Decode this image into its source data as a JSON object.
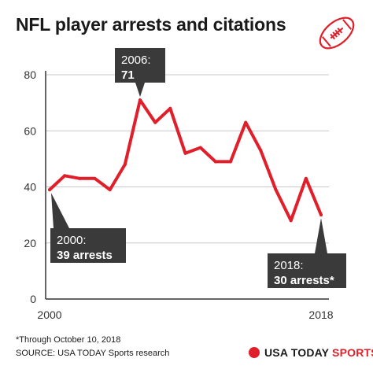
{
  "header": {
    "title": "NFL player arrests and citations"
  },
  "chart_data": {
    "type": "line",
    "title": "NFL player arrests and citations",
    "xlabel": "",
    "ylabel": "",
    "xlim": [
      2000,
      2018
    ],
    "ylim": [
      0,
      80
    ],
    "y_ticks": [
      "0",
      "20",
      "40",
      "60",
      "80"
    ],
    "x_ticks": [
      "2000",
      "2018"
    ],
    "grid": "horizontal",
    "x": [
      2000,
      2001,
      2002,
      2003,
      2004,
      2005,
      2006,
      2007,
      2008,
      2009,
      2010,
      2011,
      2012,
      2013,
      2014,
      2015,
      2016,
      2017,
      2018
    ],
    "values": [
      39,
      44,
      43,
      43,
      39,
      48,
      71,
      63,
      68,
      52,
      54,
      49,
      49,
      63,
      53,
      39,
      28,
      43,
      30
    ],
    "annotations": [
      {
        "year": "2006:",
        "text": "71"
      },
      {
        "year": "2000:",
        "text": "39 arrests"
      },
      {
        "year": "2018:",
        "text": "30 arrests*"
      }
    ]
  },
  "footer": {
    "note": "*Through October 10, 2018",
    "source": "SOURCE: USA TODAY Sports research",
    "brand_main": "USA TODAY",
    "brand_accent": "SPORTS"
  },
  "colors": {
    "line": "#e01f2a",
    "grid": "#c8c8c8",
    "callout_bg": "#3a3a3a",
    "callout_text": "#ffffff",
    "accent": "#e01f2a"
  },
  "icons": {
    "football": "football-icon",
    "brand": "usa-today-dot-icon"
  }
}
